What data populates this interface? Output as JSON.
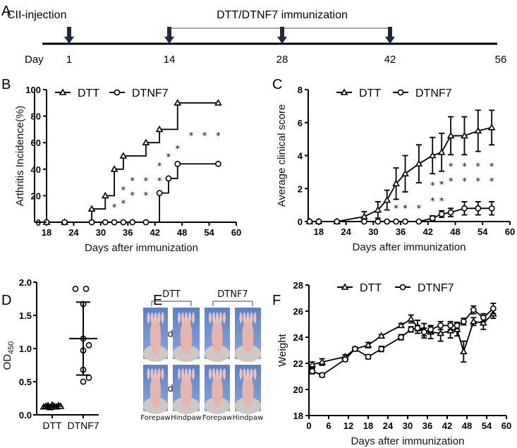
{
  "panel_labels": {
    "a": "A",
    "b": "B",
    "c": "C",
    "d": "D",
    "e": "E",
    "f": "F"
  },
  "timeline": {
    "injection_label": "CII-injection",
    "immunization_label": "DTT/DTNF7 immunization",
    "day_label": "Day",
    "days": [
      "1",
      "14",
      "28",
      "42",
      "56"
    ]
  },
  "photos": {
    "groups": [
      "DTT",
      "DTNF7"
    ],
    "rows": [
      "28d",
      "56d"
    ],
    "columns": [
      "Forepaw",
      "Hindpaw",
      "Forepaw",
      "Hindpaw"
    ]
  },
  "chart_data": [
    {
      "id": "B",
      "type": "line",
      "step": true,
      "ylabel": "Arthritis Incidence(%)",
      "xlabel": "Days after immunization",
      "xlim": [
        18,
        60
      ],
      "ylim": [
        0,
        100
      ],
      "xticks": [
        18,
        24,
        30,
        36,
        42,
        48,
        54,
        60
      ],
      "yticks": [
        0,
        20,
        40,
        60,
        80,
        100
      ],
      "legend": "top-left",
      "series": [
        {
          "name": "DTT",
          "marker": "triangle",
          "x": [
            18,
            22,
            28,
            31,
            33,
            35,
            40,
            43,
            47,
            56
          ],
          "y": [
            0,
            0,
            10,
            20,
            40,
            50,
            60,
            70,
            90,
            90
          ]
        },
        {
          "name": "DTNF7",
          "marker": "circle",
          "x": [
            18,
            22,
            28,
            31,
            33,
            35,
            37,
            40,
            43,
            45,
            47,
            56
          ],
          "y": [
            0,
            0,
            0,
            0,
            0,
            0,
            0,
            0,
            22,
            33,
            44,
            44
          ]
        }
      ],
      "annotations": [
        {
          "text": "*",
          "x": 33,
          "y": 12
        },
        {
          "text": "*",
          "x": 35,
          "y": 25
        },
        {
          "text": "*",
          "x": 35,
          "y": 15
        },
        {
          "text": "*",
          "x": 37,
          "y": 32
        },
        {
          "text": "*",
          "x": 37,
          "y": 21
        },
        {
          "text": "*",
          "x": 40,
          "y": 32
        },
        {
          "text": "*",
          "x": 40,
          "y": 21
        },
        {
          "text": "*",
          "x": 43,
          "y": 32
        },
        {
          "text": "*",
          "x": 43,
          "y": 43
        },
        {
          "text": "*",
          "x": 45,
          "y": 50
        },
        {
          "text": "*",
          "x": 47,
          "y": 56
        },
        {
          "text": "*",
          "x": 50,
          "y": 66
        },
        {
          "text": "*",
          "x": 53,
          "y": 66
        },
        {
          "text": "*",
          "x": 56,
          "y": 66
        }
      ]
    },
    {
      "id": "C",
      "type": "line",
      "ylabel": "Average clinical score",
      "xlabel": "Days after immunization",
      "xlim": [
        15.7,
        60
      ],
      "ylim": [
        0,
        8
      ],
      "xticks": [
        18,
        24,
        30,
        36,
        42,
        48,
        54,
        60
      ],
      "yticks": [
        0,
        2,
        4,
        6,
        8
      ],
      "legend": "top-left",
      "series": [
        {
          "name": "DTT",
          "marker": "triangle",
          "x": [
            16,
            18,
            22,
            28,
            31,
            33,
            35,
            37,
            40,
            43,
            45,
            47,
            50,
            53,
            56
          ],
          "y": [
            0,
            0,
            0,
            0.3,
            0.7,
            1.3,
            2.3,
            2.9,
            3.5,
            4.0,
            4.2,
            5.2,
            5.2,
            5.5,
            5.7
          ],
          "err": [
            0,
            0,
            0,
            0.3,
            0.5,
            0.6,
            0.95,
            1.1,
            1.15,
            1.1,
            1.15,
            1.15,
            1.15,
            1.25,
            1.05
          ]
        },
        {
          "name": "DTNF7",
          "marker": "circle",
          "x": [
            16,
            18,
            22,
            28,
            31,
            33,
            35,
            37,
            40,
            43,
            45,
            47,
            50,
            53,
            56
          ],
          "y": [
            0,
            0,
            0,
            0,
            0,
            0,
            0,
            0,
            0,
            0.2,
            0.45,
            0.55,
            0.8,
            0.8,
            0.8
          ],
          "err": [
            0,
            0,
            0,
            0,
            0,
            0,
            0,
            0,
            0,
            0.15,
            0.2,
            0.25,
            0.4,
            0.4,
            0.4
          ]
        }
      ],
      "annotations": [
        {
          "text": "*",
          "x": 35,
          "y": 0.85
        },
        {
          "text": "*",
          "x": 37,
          "y": 0.85
        },
        {
          "text": "*",
          "x": 40,
          "y": 0.85
        },
        {
          "text": "*",
          "x": 43,
          "y": 1.3
        },
        {
          "text": "*",
          "x": 45,
          "y": 1.3
        },
        {
          "text": "*",
          "x": 43,
          "y": 2.25
        },
        {
          "text": "*",
          "x": 45,
          "y": 2.3
        },
        {
          "text": "*",
          "x": 47,
          "y": 2.5
        },
        {
          "text": "*",
          "x": 50,
          "y": 2.5
        },
        {
          "text": "*",
          "x": 53,
          "y": 2.5
        },
        {
          "text": "*",
          "x": 56,
          "y": 2.5
        },
        {
          "text": "*",
          "x": 47,
          "y": 3.4
        },
        {
          "text": "*",
          "x": 50,
          "y": 3.4
        },
        {
          "text": "*",
          "x": 53,
          "y": 3.4
        },
        {
          "text": "*",
          "x": 56,
          "y": 3.4
        }
      ]
    },
    {
      "id": "D",
      "type": "scatter",
      "ylabel": "OD",
      "ylabel_sub": "450",
      "categories": [
        "DTT",
        "DTNF7"
      ],
      "ylim": [
        0,
        2.0
      ],
      "yticks": [
        "0.0",
        "0.5",
        "1.0",
        "1.5",
        "2.0"
      ],
      "groups": [
        {
          "name": "DTT",
          "marker": "triangle",
          "values": [
            0.12,
            0.13,
            0.14,
            0.11,
            0.15,
            0.13,
            0.12,
            0.14,
            0.13,
            0.12
          ],
          "mean": 0.13,
          "sd": 0.02
        },
        {
          "name": "DTNF7",
          "marker": "circle",
          "values": [
            1.9,
            1.9,
            1.67,
            1.15,
            1.05,
            0.97,
            0.68,
            0.56,
            0.5
          ],
          "mean": 1.15,
          "sd": 0.55
        }
      ]
    },
    {
      "id": "F",
      "type": "line",
      "ylabel": "Weight",
      "xlabel": "Days after immunization",
      "xlim": [
        0,
        60
      ],
      "ylim": [
        18,
        28
      ],
      "xticks": [
        0,
        6,
        12,
        18,
        24,
        30,
        36,
        42,
        48,
        54,
        60
      ],
      "yticks": [
        18,
        20,
        22,
        24,
        26,
        28
      ],
      "legend": "top-left",
      "series": [
        {
          "name": "DTT",
          "marker": "triangle",
          "x": [
            1,
            4,
            11,
            14,
            18,
            22,
            28,
            31,
            33,
            35,
            37,
            40,
            43,
            45,
            47,
            50,
            53,
            56
          ],
          "y": [
            21.9,
            22.1,
            22.5,
            23.1,
            23.4,
            24.1,
            24.9,
            25.4,
            24.8,
            24.5,
            24.4,
            24.3,
            24.5,
            24.6,
            22.9,
            25.2,
            25.1,
            25.8
          ],
          "err": [
            0.2,
            0.25,
            0.15,
            0.15,
            0.2,
            0.1,
            0.15,
            0.3,
            0.5,
            0.55,
            0.5,
            0.6,
            0.55,
            0.5,
            0.8,
            0.3,
            0.5,
            0.35
          ]
        },
        {
          "name": "DTNF7",
          "marker": "circle",
          "x": [
            1,
            4,
            11,
            14,
            18,
            22,
            28,
            31,
            33,
            35,
            37,
            40,
            43,
            45,
            47,
            50,
            53,
            56
          ],
          "y": [
            21.4,
            21.1,
            22.3,
            23.1,
            22.5,
            23.1,
            24.0,
            24.6,
            24.7,
            24.4,
            24.6,
            24.9,
            24.9,
            24.9,
            25.2,
            26.1,
            25.5,
            26.2
          ],
          "err": [
            0.2,
            0.15,
            0.15,
            0.15,
            0.15,
            0.2,
            0.2,
            0.2,
            0.2,
            0.3,
            0.25,
            0.3,
            0.3,
            0.25,
            0.25,
            0.3,
            0.3,
            0.4
          ]
        }
      ]
    }
  ]
}
